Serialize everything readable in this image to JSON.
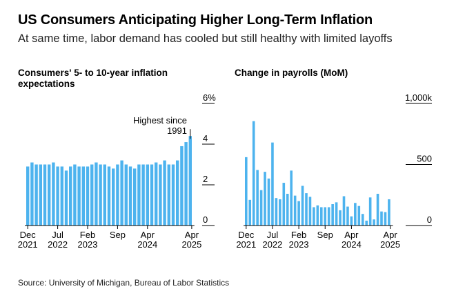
{
  "title": "US Consumers Anticipating Higher Long-Term Inflation",
  "subtitle": "At same time, labor demand has cooled but still healthy with limited layoffs",
  "source": "Source: University of Michigan, Bureau of Labor Statistics",
  "colors": {
    "bar": "#4db3ee",
    "axis": "#000000",
    "text": "#000000"
  },
  "chart_data": [
    {
      "type": "bar",
      "title": "Consumers' 5- to 10-year inflation expectations",
      "ylim": [
        0,
        6
      ],
      "yticks": [
        "0",
        "2",
        "4",
        "6%"
      ],
      "xtick_labels": [
        {
          "month": "Dec",
          "year": "2021"
        },
        {
          "month": "Jul",
          "year": "2022"
        },
        {
          "month": "Feb",
          "year": "2023"
        },
        {
          "month": "Sep",
          "year": ""
        },
        {
          "month": "Apr",
          "year": "2024"
        },
        {
          "month": "Apr",
          "year": "2025"
        }
      ],
      "annotation": "Highest since 1991",
      "annotation_lines": [
        "Highest since",
        "1991"
      ],
      "values": [
        2.9,
        3.1,
        3.0,
        3.0,
        3.0,
        3.0,
        3.1,
        2.9,
        2.9,
        2.7,
        2.9,
        3.0,
        2.9,
        2.9,
        2.9,
        3.0,
        3.1,
        3.0,
        3.0,
        2.9,
        2.8,
        3.0,
        3.2,
        3.0,
        2.9,
        2.8,
        3.0,
        3.0,
        3.0,
        3.0,
        3.1,
        3.0,
        3.2,
        3.0,
        3.0,
        3.2,
        3.9,
        4.1,
        4.4
      ]
    },
    {
      "type": "bar",
      "title": "Change in payrolls (MoM)",
      "ylim": [
        0,
        1000
      ],
      "yticks": [
        "0",
        "500",
        "1,000k"
      ],
      "xtick_labels": [
        {
          "month": "Dec",
          "year": "2021"
        },
        {
          "month": "Jul",
          "year": "2022"
        },
        {
          "month": "Feb",
          "year": "2023"
        },
        {
          "month": "Sep",
          "year": ""
        },
        {
          "month": "Apr",
          "year": "2024"
        },
        {
          "month": "Apr",
          "year": "2025"
        }
      ],
      "values": [
        560,
        210,
        855,
        455,
        290,
        440,
        385,
        680,
        225,
        215,
        350,
        260,
        450,
        245,
        200,
        325,
        265,
        235,
        150,
        165,
        150,
        150,
        150,
        175,
        190,
        125,
        240,
        155,
        75,
        185,
        160,
        95,
        40,
        230,
        50,
        260,
        115,
        110,
        215
      ]
    }
  ]
}
